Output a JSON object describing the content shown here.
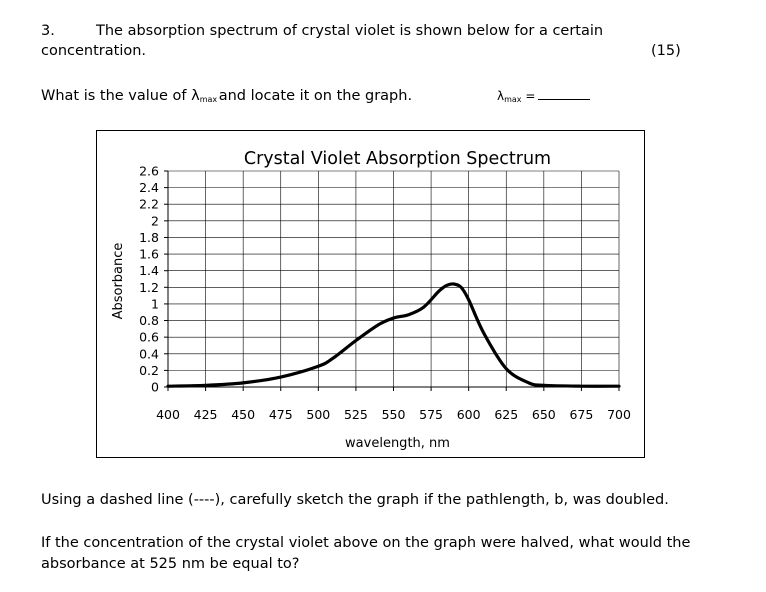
{
  "question": {
    "number": "3.",
    "intro_line1": "The absorption spectrum of crystal violet is shown below for a certain",
    "intro_line2": "concentration.",
    "points": "(15)",
    "ask_before": "What is the value of λ",
    "ask_sub": "max",
    "ask_after": "and locate it on the graph.",
    "answer_lambda": "λ",
    "answer_sub": "max",
    "answer_eq": "=",
    "followup1": "Using a dashed line (----), carefully sketch the graph if the pathlength, b, was doubled.",
    "followup2_line1": "If the concentration of the crystal violet above on the graph were halved, what would the",
    "followup2_line2": "absorbance at 525 nm be equal to?"
  },
  "chart_data": {
    "type": "line",
    "title": "Crystal Violet Absorption Spectrum",
    "xlabel": "wavelength, nm",
    "ylabel": "Absorbance",
    "xlim": [
      400,
      700
    ],
    "ylim": [
      0,
      2.6
    ],
    "xticks": [
      400,
      425,
      450,
      475,
      500,
      525,
      550,
      575,
      600,
      625,
      650,
      675,
      700
    ],
    "yticks": [
      "0",
      "0.2",
      "0.4",
      "0.6",
      "0.8",
      "1",
      "1.2",
      "1.4",
      "1.6",
      "1.8",
      "2",
      "2.2",
      "2.4",
      "2.6"
    ],
    "grid": true,
    "legend": "none",
    "line_color": "#000000",
    "series": [
      {
        "x": [
          400,
          425,
          450,
          475,
          500,
          510,
          525,
          540,
          550,
          560,
          570,
          580,
          585,
          590,
          595,
          600,
          610,
          625,
          640,
          650,
          675,
          700
        ],
        "y": [
          0.01,
          0.02,
          0.05,
          0.12,
          0.25,
          0.35,
          0.56,
          0.75,
          0.83,
          0.87,
          0.96,
          1.15,
          1.22,
          1.24,
          1.2,
          1.05,
          0.65,
          0.22,
          0.05,
          0.02,
          0.01,
          0.01
        ]
      }
    ]
  }
}
